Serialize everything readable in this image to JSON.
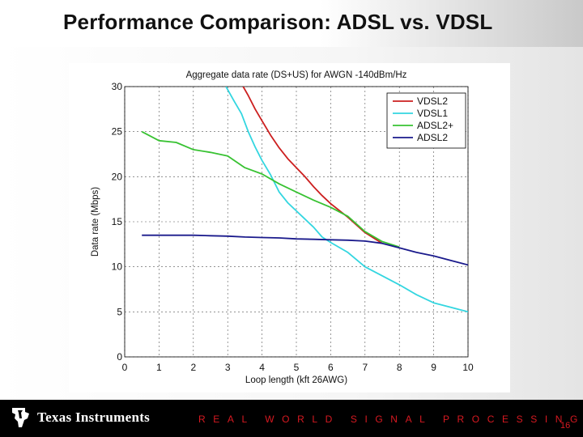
{
  "slide": {
    "title": "Performance Comparison: ADSL vs. VDSL",
    "brand": "Texas Instruments",
    "tagline": "REAL WORLD SIGNAL PROCESSING™",
    "page_number": "16",
    "brand_color": "#d71921",
    "footer_color": "#000000"
  },
  "chart_data": {
    "type": "line",
    "title": "Aggregate data rate (DS+US) for AWGN -140dBm/Hz",
    "xlabel": "Loop length (kft 26AWG)",
    "ylabel": "Data rate (Mbps)",
    "xlim": [
      0,
      10
    ],
    "ylim": [
      0,
      30
    ],
    "xticks": [
      0,
      1,
      2,
      3,
      4,
      5,
      6,
      7,
      8,
      9,
      10
    ],
    "yticks": [
      0,
      5,
      10,
      15,
      20,
      25,
      30
    ],
    "grid": true,
    "legend_position": "top-right",
    "series": [
      {
        "name": "VDSL2",
        "color": "#cc1f1f",
        "x": [
          3.45,
          3.6,
          3.8,
          4.0,
          4.25,
          4.5,
          4.75,
          5.0,
          5.25,
          5.5,
          5.75,
          6.0,
          6.5,
          7.0,
          7.5
        ],
        "y": [
          30,
          29,
          27.5,
          26.2,
          24.6,
          23.2,
          22.0,
          21.0,
          20.0,
          18.9,
          17.9,
          17.0,
          15.5,
          13.8,
          12.6
        ]
      },
      {
        "name": "VDSL1",
        "color": "#33d6e0",
        "x": [
          2.95,
          3.2,
          3.4,
          3.6,
          3.8,
          4.0,
          4.25,
          4.5,
          4.75,
          5.0,
          5.25,
          5.5,
          5.75,
          6.0,
          6.5,
          7.0,
          7.5,
          8.0,
          8.5,
          9.0,
          9.5,
          10.0
        ],
        "y": [
          30,
          28.3,
          27.0,
          25.0,
          23.3,
          21.8,
          20.2,
          18.3,
          17.1,
          16.2,
          15.3,
          14.4,
          13.3,
          12.7,
          11.6,
          10.0,
          9.0,
          8.0,
          6.9,
          6.0,
          5.5,
          5.0
        ]
      },
      {
        "name": "ADSL2+",
        "color": "#38c232",
        "x": [
          0.5,
          1.0,
          1.5,
          2.0,
          2.5,
          3.0,
          3.5,
          4.0,
          4.5,
          5.0,
          5.5,
          6.0,
          6.5,
          7.0,
          7.5,
          8.0
        ],
        "y": [
          25.0,
          24.0,
          23.8,
          23.0,
          22.7,
          22.3,
          21.0,
          20.3,
          19.2,
          18.3,
          17.4,
          16.6,
          15.6,
          13.9,
          12.8,
          12.2
        ]
      },
      {
        "name": "ADSL2",
        "color": "#1a1a8c",
        "x": [
          0.5,
          1.0,
          1.5,
          2.0,
          2.5,
          3.0,
          3.5,
          4.0,
          4.5,
          5.0,
          5.5,
          6.0,
          6.5,
          7.0,
          7.5,
          8.0,
          8.5,
          9.0,
          9.5,
          10.0
        ],
        "y": [
          13.5,
          13.5,
          13.5,
          13.5,
          13.45,
          13.4,
          13.3,
          13.25,
          13.2,
          13.1,
          13.05,
          13.0,
          12.95,
          12.85,
          12.6,
          12.1,
          11.6,
          11.2,
          10.7,
          10.2
        ]
      }
    ]
  }
}
